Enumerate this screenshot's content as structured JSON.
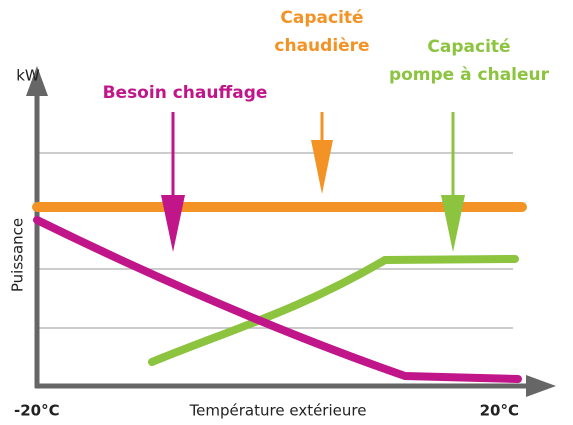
{
  "labels": {
    "y_unit": "kW",
    "y_axis": "Puissance",
    "x_axis": "Température extérieure",
    "x_min": "-20°C",
    "x_max": "20°C"
  },
  "curves": {
    "demand": "Besoin chauffage",
    "boiler": [
      "Capacité",
      "chaudière"
    ],
    "heat_pump": [
      "Capacité",
      "pompe à chaleur"
    ]
  }
}
